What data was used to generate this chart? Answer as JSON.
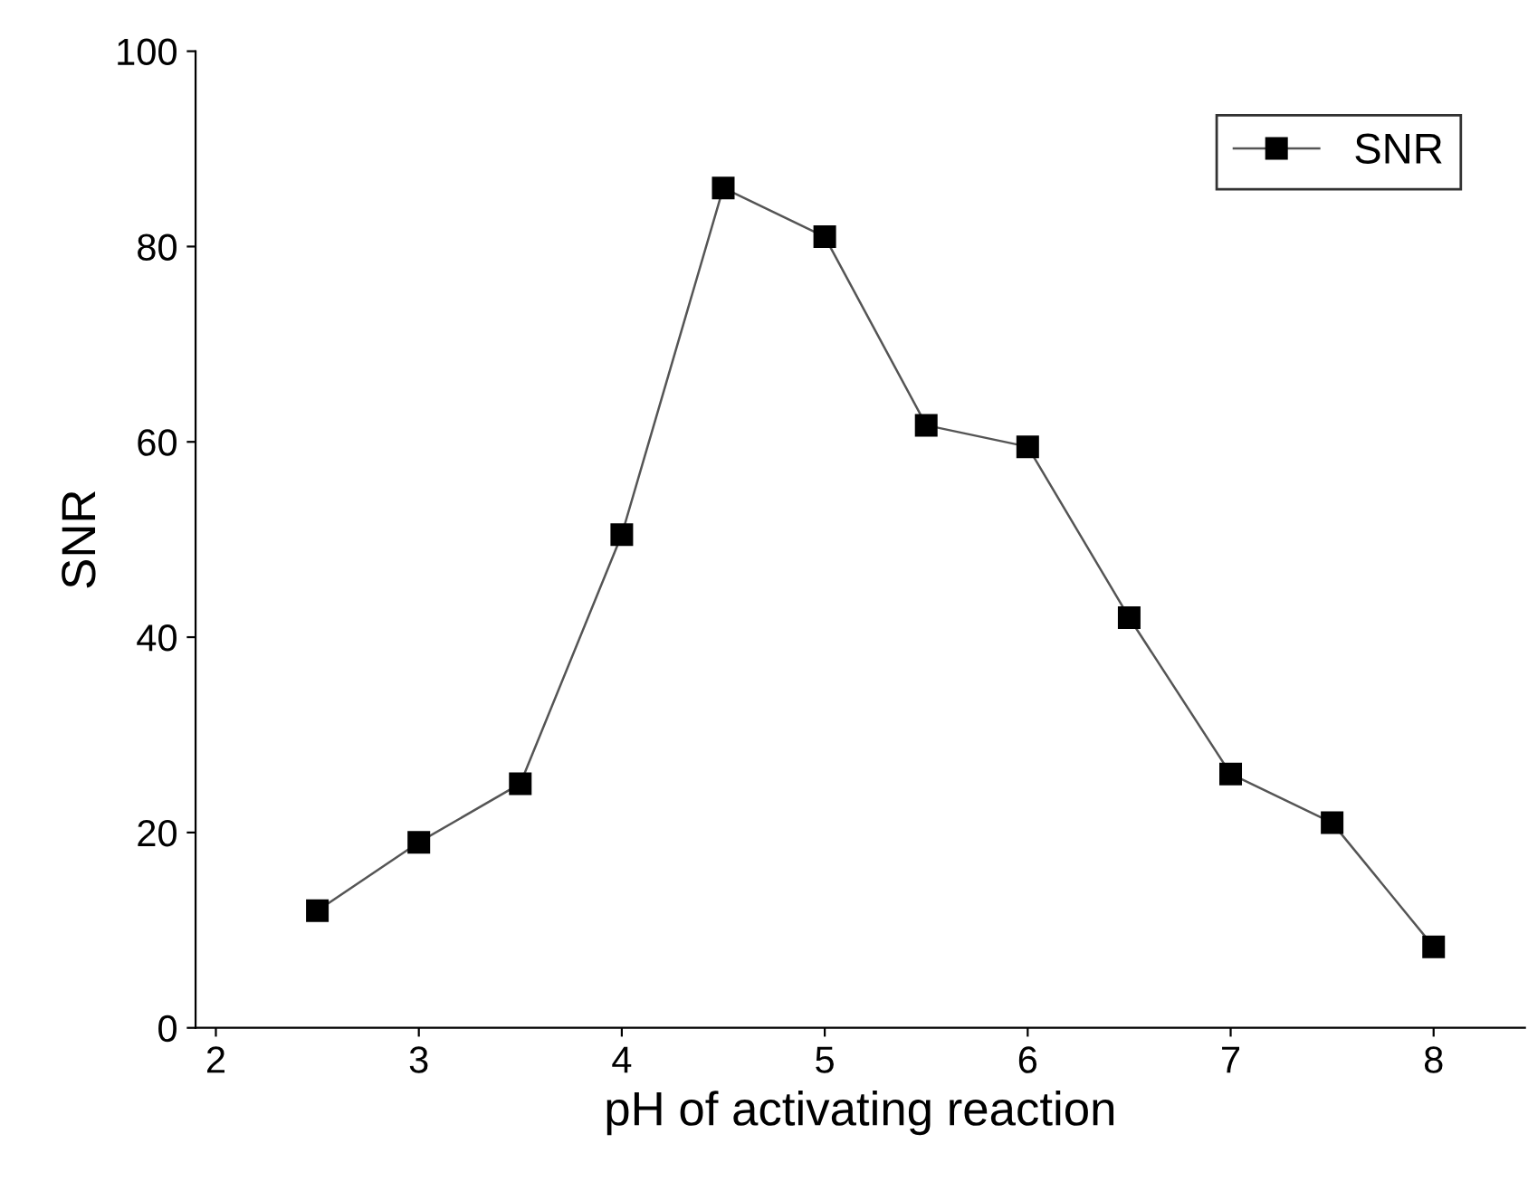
{
  "chart_data": {
    "type": "line",
    "xlabel": "pH of activating reaction",
    "ylabel": "SNR",
    "x": [
      2.5,
      3,
      3.5,
      4,
      4.5,
      5,
      5.5,
      6,
      6.5,
      7,
      7.5,
      8
    ],
    "series": [
      {
        "name": "SNR",
        "color": "#000000",
        "values": [
          12,
          19,
          25,
          50.5,
          86,
          81,
          61.7,
          59.5,
          42,
          26,
          21,
          8.3
        ]
      }
    ],
    "xlim": [
      1.9,
      8.45
    ],
    "xticks": [
      2,
      3,
      4,
      5,
      6,
      7,
      8
    ],
    "ylim": [
      0,
      100
    ],
    "yticks": [
      0,
      20,
      40,
      60,
      80,
      100
    ],
    "marker": "square",
    "line_style": "solid",
    "legend": "top right",
    "grid": false
  }
}
